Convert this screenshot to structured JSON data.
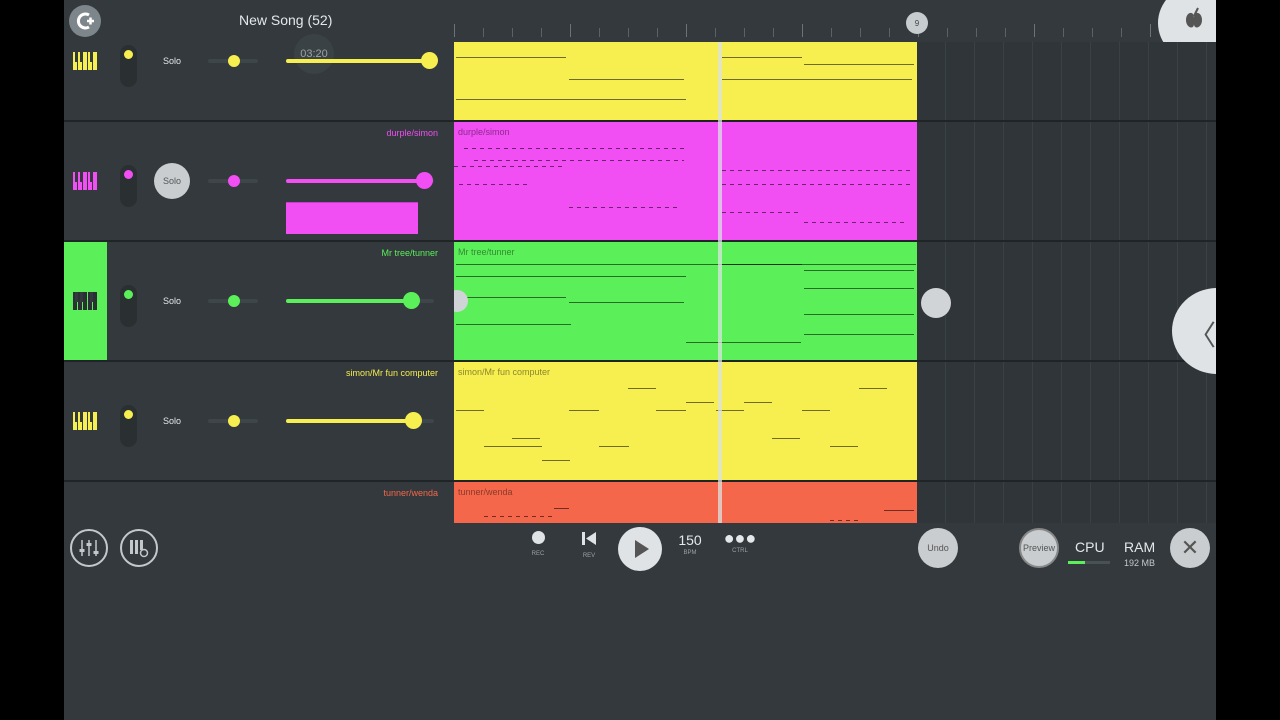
{
  "header": {
    "song_title": "New Song (52)",
    "playhead_bar": "9"
  },
  "time_display": "03:20",
  "tracks": [
    {
      "name": "",
      "solo": "Solo",
      "color": "#f7ee4f",
      "pattern_label": "",
      "volume": 0.97,
      "pan": 0.5
    },
    {
      "name": "durple/simon",
      "solo": "Solo",
      "color": "#f14ef3",
      "pattern_label": "durple/simon",
      "volume": 0.9,
      "pan": 0.5
    },
    {
      "name": "Mr tree/tunner",
      "solo": "Solo",
      "color": "#5bf05a",
      "pattern_label": "Mr tree/tunner",
      "volume": 0.85,
      "pan": 0.5
    },
    {
      "name": "simon/Mr fun computer",
      "solo": "Solo",
      "color": "#f7ee4f",
      "pattern_label": "simon/Mr fun computer",
      "volume": 0.86,
      "pan": 0.5
    },
    {
      "name": "tunner/wenda",
      "solo": "",
      "color": "#f5674a",
      "pattern_label": "tunner/wenda",
      "volume": 0,
      "pan": 0.5
    }
  ],
  "toolbar": {
    "rec_caption": "REC",
    "rev_caption": "REV",
    "bpm_value": "150",
    "bpm_caption": "BPM",
    "ctrl_caption": "CTRL",
    "undo_label": "Undo",
    "preview_label": "Preview",
    "cpu_label": "CPU",
    "cpu_load": 0.4,
    "ram_label": "RAM",
    "ram_value": "192 MB"
  },
  "icons": [
    "mixer-icon",
    "piano-settings-icon",
    "record-icon",
    "rewind-icon",
    "play-icon",
    "more-icon",
    "close-icon",
    "fruit-logo-icon",
    "collapse-chevron-icon"
  ]
}
